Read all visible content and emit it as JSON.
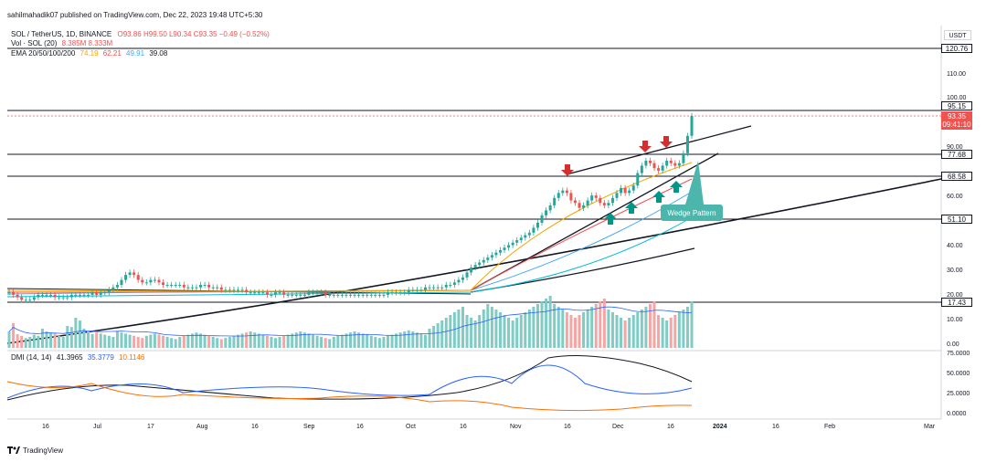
{
  "header": {
    "published": "sahilmahadik07 published on TradingView.com, Dec 22, 2023 19:48 UTC+5:30",
    "symbol": "SOL / TetherUS, 1D, BINANCE",
    "ohlc": "O93.86 H99.50 L90.34 C93.35 −0.49 (−0.52%)",
    "vol_label": "Vol · SOL (20)",
    "vol_values": "8.385M  8.333M",
    "ema_label": "EMA 20/50/100/200",
    "ema_values": [
      "74.19",
      "62.21",
      "49.91",
      "39.08"
    ],
    "currency": "USDT",
    "dmi_label": "DMI (14, 14)",
    "dmi_values": [
      "41.3965",
      "35.3779",
      "10.1146"
    ]
  },
  "price_axis": {
    "ticks": [
      "110.00",
      "100.00",
      "90.00",
      "60.00",
      "40.00",
      "30.00",
      "20.00",
      "10.00",
      "0.00"
    ],
    "levels": [
      "120.76",
      "95.15",
      "77.68",
      "68.58",
      "51.10",
      "17.43"
    ],
    "last_price": "93.35",
    "countdown": "09:41:10"
  },
  "dmi_axis": {
    "ticks": [
      "75.0000",
      "50.0000",
      "25.0000",
      "0.0000"
    ]
  },
  "time_axis": {
    "ticks": [
      "16",
      "Jul",
      "17",
      "Aug",
      "16",
      "Sep",
      "16",
      "Oct",
      "16",
      "Nov",
      "16",
      "Dec",
      "16",
      "2024",
      "16",
      "Feb",
      "Mar"
    ]
  },
  "annotation": {
    "label": "Wedge Pattern"
  },
  "footer": {
    "brand": "TradingView"
  },
  "colors": {
    "up": "#26a69a",
    "down": "#ef5350",
    "ema20": "#f7a600",
    "ema50": "#ef5350",
    "ema100": "#42a5f5",
    "ema200": "#00bcd4",
    "dmi_adx": "#131722",
    "dmi_plus": "#2962ff",
    "dmi_minus": "#ff6d00",
    "annotation": "#4db6ac"
  },
  "chart_data": {
    "type": "candlestick",
    "symbol": "SOL / TetherUS, 1D, BINANCE",
    "horizontal_levels": [
      120.76,
      95.15,
      77.68,
      68.58,
      51.1,
      17.43
    ],
    "last_price": 93.35,
    "ohlc_last": {
      "open": 93.86,
      "high": 99.5,
      "low": 90.34,
      "close": 93.35
    },
    "ema": {
      "ema20": 74.19,
      "ema50": 62.21,
      "ema100": 49.91,
      "ema200": 39.08
    },
    "dmi": {
      "adx": 41.3965,
      "plus_di": 35.3779,
      "minus_di": 10.1146
    },
    "price_axis_range": [
      0,
      125
    ],
    "dmi_axis_range": [
      0,
      80
    ],
    "candles_close": [
      22,
      21,
      20,
      19,
      19,
      19,
      20,
      21,
      21,
      21,
      21,
      20,
      20,
      20,
      20,
      21,
      21,
      21,
      21,
      21,
      22,
      21,
      22,
      22,
      23,
      24,
      25,
      27,
      29,
      30,
      29,
      27,
      26,
      26,
      27,
      27,
      26,
      25,
      25,
      25,
      25,
      25,
      24,
      24,
      24,
      24,
      25,
      25,
      24,
      24,
      24,
      23,
      23,
      23,
      23,
      23,
      23,
      22,
      22,
      22,
      22,
      22,
      21,
      21,
      22,
      22,
      21,
      21,
      21,
      21,
      21,
      21,
      22,
      22,
      22,
      22,
      21,
      21,
      21,
      21,
      21,
      21,
      21,
      21,
      21,
      21,
      21,
      21,
      21,
      21,
      21,
      22,
      22,
      22,
      22,
      22,
      23,
      23,
      23,
      23,
      24,
      24,
      24,
      24,
      24,
      25,
      25,
      26,
      27,
      28,
      30,
      32,
      33,
      34,
      35,
      36,
      37,
      38,
      39,
      40,
      41,
      42,
      43,
      44,
      45,
      46,
      48,
      50,
      53,
      55,
      57,
      60,
      62,
      63,
      62,
      59,
      58,
      56,
      57,
      59,
      61,
      60,
      58,
      57,
      58,
      60,
      62,
      64,
      62,
      63,
      65,
      70,
      73,
      75,
      74,
      72,
      71,
      73,
      75,
      74,
      73,
      74,
      78,
      85,
      93
    ],
    "volume_relative": [
      30,
      45,
      25,
      22,
      18,
      20,
      24,
      22,
      35,
      30,
      28,
      26,
      22,
      20,
      40,
      38,
      55,
      50,
      35,
      30,
      25,
      28,
      26,
      24,
      22,
      20,
      30,
      28,
      26,
      24,
      22,
      20,
      18,
      22,
      24,
      26,
      24,
      22,
      20,
      18,
      16,
      20,
      22,
      24,
      26,
      28,
      26,
      24,
      22,
      20,
      18,
      16,
      18,
      20,
      22,
      24,
      26,
      28,
      30,
      28,
      26,
      24,
      22,
      20,
      18,
      20,
      22,
      24,
      26,
      28,
      30,
      28,
      26,
      24,
      22,
      20,
      18,
      16,
      20,
      22,
      24,
      26,
      28,
      30,
      28,
      26,
      24,
      22,
      20,
      18,
      20,
      22,
      24,
      26,
      28,
      30,
      32,
      30,
      28,
      26,
      24,
      35,
      40,
      45,
      50,
      55,
      60,
      65,
      70,
      75,
      60,
      55,
      50,
      60,
      70,
      80,
      75,
      70,
      65,
      60,
      55,
      50,
      55,
      60,
      65,
      70,
      75,
      80,
      85,
      90,
      95,
      80,
      75,
      70,
      65,
      60,
      55,
      60,
      65,
      70,
      75,
      80,
      85,
      90,
      70,
      65,
      60,
      55,
      50,
      55,
      60,
      65,
      70,
      75,
      80,
      85,
      60,
      55,
      50,
      55,
      60,
      65,
      70,
      75,
      85
    ]
  }
}
